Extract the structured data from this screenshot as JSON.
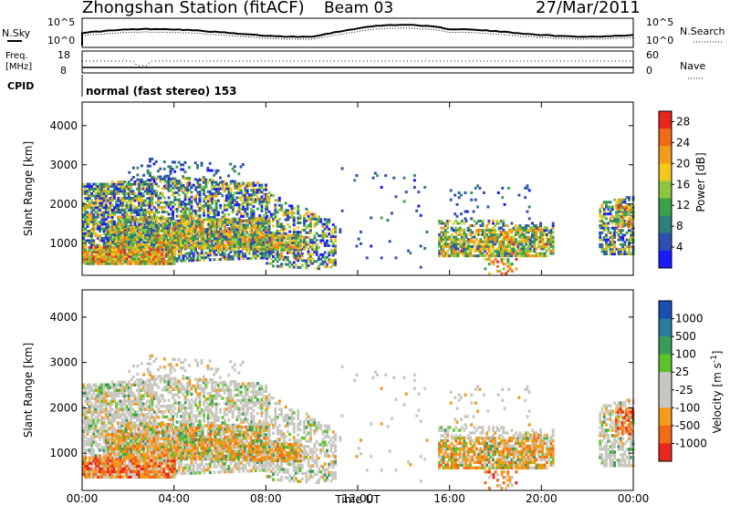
{
  "header": {
    "station": "Zhongshan Station (fitACF)",
    "beam": "Beam 03",
    "date": "27/Mar/2011"
  },
  "noise_panel": {
    "left_label": "N.Sky",
    "right_label": "N.Search",
    "left_ticks": [
      "10^5",
      "10^0"
    ],
    "right_ticks": [
      "10^5",
      "10^0"
    ]
  },
  "freq_panel": {
    "left_label_line1": "Freq.",
    "left_label_line2": "[MHz]",
    "right_label": "Nave",
    "left_ticks": [
      "18",
      "8"
    ],
    "right_ticks": [
      "60",
      "0"
    ]
  },
  "cpid": {
    "label": "CPID",
    "text": "normal (fast stereo) 153"
  },
  "colors": {
    "power_scale": [
      "#1a1aff",
      "#2e4fb0",
      "#2f7f7a",
      "#3aa04a",
      "#8cc63f",
      "#f2c81a",
      "#f39b1a",
      "#f26b1a",
      "#e8281c"
    ],
    "velocity_scale": [
      "#1a4fb5",
      "#2a7da0",
      "#3a9a5a",
      "#5cc42a",
      "#c8c8c0",
      "#c8c8c0",
      "#f39b1a",
      "#f26b1a",
      "#e8281c"
    ],
    "ground_scatter": "#c8c8c0"
  },
  "chart_data": [
    {
      "type": "heatmap",
      "name": "power",
      "xlabel": "",
      "ylabel": "Slant Range [km]",
      "xlim": [
        "00:00",
        "24:00"
      ],
      "ylim": [
        180,
        4600
      ],
      "yticks": [
        "1000",
        "2000",
        "3000",
        "4000"
      ],
      "colorbar": {
        "label": "Power [dB]",
        "range": [
          0,
          30
        ],
        "ticks": [
          "4",
          "8",
          "12",
          "16",
          "20",
          "24",
          "28"
        ]
      }
    },
    {
      "type": "heatmap",
      "name": "velocity",
      "xlabel": "Time UT",
      "ylabel": "Slant Range [km]",
      "xlim": [
        "00:00",
        "24:00"
      ],
      "ylim": [
        180,
        4600
      ],
      "yticks": [
        "1000",
        "2000",
        "3000",
        "4000"
      ],
      "xticks": [
        "00:00",
        "04:00",
        "08:00",
        "12:00",
        "16:00",
        "20:00",
        "00:00"
      ],
      "colorbar": {
        "label": "Velocity [m s^-1]",
        "ticks": [
          "1000",
          "500",
          "100",
          "25",
          "-25",
          "-100",
          "-500",
          "-1000"
        ]
      }
    }
  ]
}
